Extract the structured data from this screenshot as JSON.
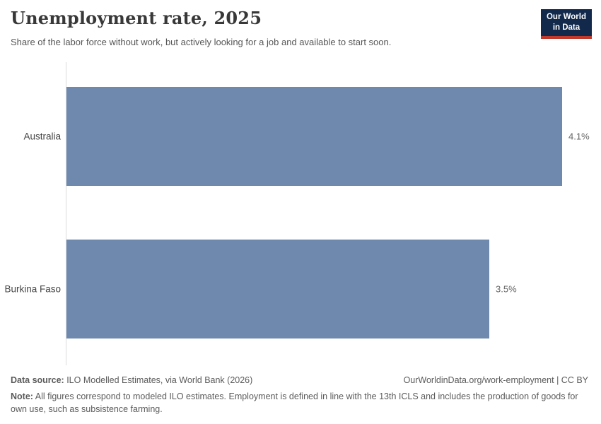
{
  "header": {
    "title": "Unemployment rate, 2025",
    "subtitle": "Share of the labor force without work, but actively looking for a job and available to start soon.",
    "logo": {
      "line1": "Our World",
      "line2": "in Data"
    }
  },
  "chart_data": {
    "type": "bar",
    "orientation": "horizontal",
    "title": "Unemployment rate, 2025",
    "categories": [
      "Australia",
      "Burkina Faso"
    ],
    "values": [
      4.1,
      3.5
    ],
    "value_labels": [
      "4.1%",
      "3.5%"
    ],
    "unit": "%",
    "xlim": [
      0,
      4.1
    ],
    "grid": false,
    "legend": "none"
  },
  "footer": {
    "data_source_label": "Data source:",
    "data_source_text": " ILO Modelled Estimates, via World Bank (2026)",
    "link_text": "OurWorldinData.org/work-employment | CC BY",
    "note_label": "Note:",
    "note_text": " All figures correspond to modeled ILO estimates. Employment is defined in line with the 13th ICLS and includes the production of goods for own use, such as subsistence farming."
  },
  "colors": {
    "bar": "#6e88ae",
    "logo_bg": "#12294b",
    "logo_accent": "#c0392b",
    "axis_line": "#dcdcdc"
  }
}
